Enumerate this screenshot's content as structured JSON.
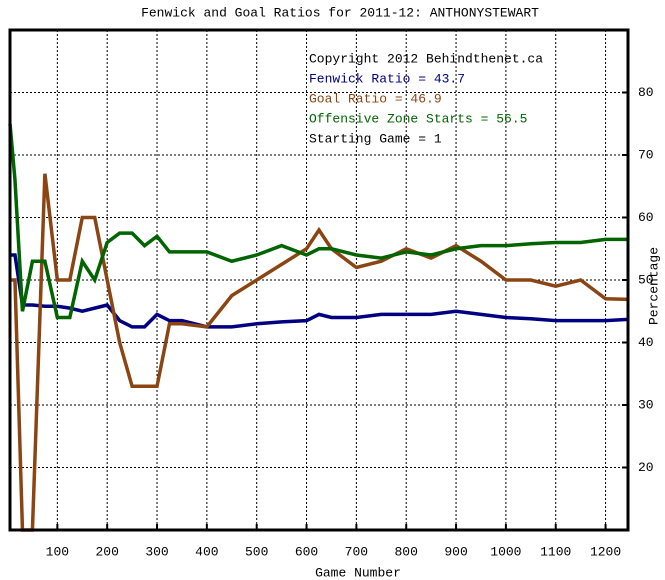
{
  "chart_data": {
    "type": "line",
    "title": "Fenwick and Goal Ratios for 2011-12: ANTHONYSTEWART",
    "xlabel": "Game Number",
    "ylabel": "Percentage",
    "annotations": [
      {
        "text": "Copyright 2012 Behindthenet.ca",
        "color": "#000000"
      },
      {
        "text": "Fenwick Ratio = 43.7",
        "color": "#000080"
      },
      {
        "text": "Goal Ratio = 46.9",
        "color": "#8b4513"
      },
      {
        "text": "Offensive Zone Starts = 56.5",
        "color": "#006400"
      },
      {
        "text": "Starting Game = 1",
        "color": "#000000"
      }
    ],
    "x": [
      5,
      15,
      30,
      50,
      75,
      100,
      125,
      150,
      175,
      200,
      225,
      250,
      275,
      300,
      325,
      350,
      400,
      450,
      500,
      550,
      600,
      625,
      650,
      700,
      750,
      800,
      850,
      900,
      950,
      1000,
      1050,
      1100,
      1150,
      1200,
      1245
    ],
    "series": [
      {
        "name": "Fenwick Ratio",
        "color": "#000080",
        "values": [
          54,
          54,
          46,
          46,
          45.8,
          45.8,
          45.5,
          45,
          45.5,
          46,
          43.5,
          42.5,
          42.5,
          44.5,
          43.5,
          43.5,
          42.5,
          42.5,
          43,
          43.3,
          43.5,
          44.5,
          44,
          44,
          44.5,
          44.5,
          44.5,
          45,
          44.5,
          44,
          43.8,
          43.5,
          43.5,
          43.5,
          43.7
        ]
      },
      {
        "name": "Goal Ratio",
        "color": "#8b4513",
        "values": [
          50,
          50,
          10,
          10,
          67,
          50,
          50,
          60,
          60,
          50,
          40,
          33,
          33,
          33,
          43,
          43,
          42.5,
          47.5,
          50,
          52.5,
          55,
          58,
          55,
          52,
          53,
          55,
          53.5,
          55.5,
          53,
          50,
          50,
          49,
          50,
          47,
          46.9
        ]
      },
      {
        "name": "Offensive Zone Starts",
        "color": "#006400",
        "values": [
          75,
          66,
          45,
          53,
          53,
          44,
          44,
          53,
          50,
          56,
          57.5,
          57.5,
          55.5,
          57,
          54.5,
          54.5,
          54.5,
          53,
          54,
          55.5,
          54,
          55,
          55,
          54,
          53.5,
          54.5,
          54,
          55,
          55.5,
          55.5,
          55.8,
          56,
          56,
          56.5,
          56.5
        ]
      }
    ],
    "xlim": [
      5,
      1245
    ],
    "ylim": [
      10,
      90
    ],
    "xticks": [
      100,
      200,
      300,
      400,
      500,
      600,
      700,
      800,
      900,
      1000,
      1100,
      1200
    ],
    "yticks": [
      20,
      30,
      40,
      50,
      60,
      70,
      80
    ],
    "grid": true
  }
}
